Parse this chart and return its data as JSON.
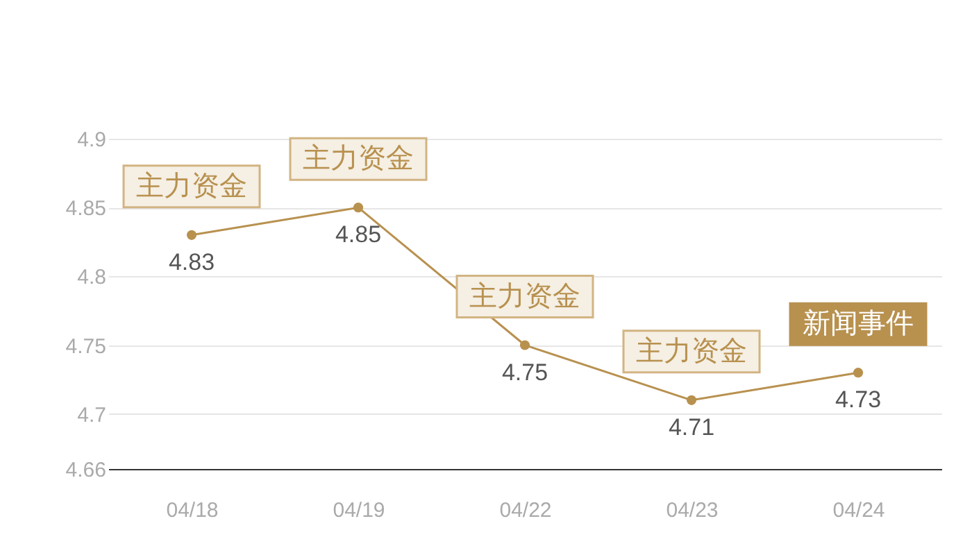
{
  "chart_data": {
    "type": "line",
    "categories": [
      "04/18",
      "04/19",
      "04/22",
      "04/23",
      "04/24"
    ],
    "series": [
      {
        "color": "#b8914f",
        "values": [
          4.83,
          4.85,
          4.75,
          4.71,
          4.73
        ]
      }
    ],
    "ylim": [
      4.66,
      4.9
    ],
    "yticks": [
      4.66,
      4.7,
      4.75,
      4.8,
      4.85,
      4.9
    ],
    "grid": "y",
    "marker": "circle",
    "line_style": "solid",
    "data_labels": true,
    "annotations": [
      {
        "text": "主力资金",
        "x": "04/18",
        "y": 4.83
      },
      {
        "text": "主力资金",
        "x": "04/19",
        "y": 4.85
      },
      {
        "text": "主力资金",
        "x": "04/22",
        "y": 4.75
      },
      {
        "text": "主力资金",
        "x": "04/23",
        "y": 4.71
      },
      {
        "text": "新闻事件",
        "x": "04/24",
        "y": 4.73
      }
    ]
  }
}
